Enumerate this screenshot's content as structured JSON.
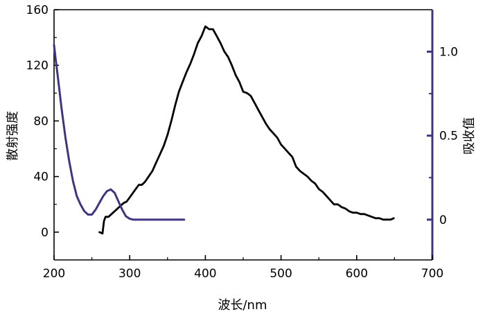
{
  "chart_data": {
    "type": "line",
    "xlabel": "波长/nm",
    "ylabel_left": "散射强度",
    "ylabel_right": "吸收值",
    "x_range": [
      200,
      700
    ],
    "x_ticks": [
      200,
      300,
      400,
      500,
      600,
      700
    ],
    "y_left_range": [
      -20,
      160
    ],
    "y_left_ticks": [
      0,
      40,
      80,
      120,
      160
    ],
    "y_right_range": [
      -0.24,
      1.25
    ],
    "y_right_ticks": [
      0,
      0.5,
      1.0
    ],
    "y_right_tick_labels": [
      "0",
      "0.5",
      "1.0"
    ],
    "grid": false,
    "colors": {
      "scatter_series": "#000000",
      "absorbance_series": "#3d3580",
      "right_axis": "#3d3580"
    },
    "series": [
      {
        "axis": "left",
        "x": [
          260,
          264,
          266,
          268,
          272,
          276,
          280,
          284,
          288,
          292,
          296,
          300,
          304,
          308,
          312,
          316,
          320,
          325,
          330,
          335,
          340,
          345,
          350,
          355,
          360,
          365,
          370,
          375,
          380,
          385,
          390,
          395,
          400,
          405,
          410,
          415,
          420,
          425,
          430,
          435,
          440,
          445,
          450,
          455,
          460,
          465,
          470,
          475,
          480,
          485,
          490,
          495,
          500,
          505,
          510,
          515,
          520,
          525,
          530,
          535,
          540,
          545,
          550,
          555,
          560,
          565,
          570,
          575,
          580,
          585,
          590,
          595,
          600,
          605,
          610,
          615,
          620,
          625,
          630,
          635,
          640,
          645,
          649
        ],
        "values": [
          0,
          -1,
          8,
          11,
          11,
          13,
          15,
          17,
          19,
          21,
          22,
          25,
          28,
          31,
          34,
          34,
          36,
          40,
          44,
          50,
          56,
          62,
          70,
          80,
          91,
          101,
          108,
          115,
          121,
          128,
          136,
          141,
          148,
          146,
          146,
          141,
          136,
          130,
          126,
          120,
          113,
          108,
          101,
          100,
          98,
          93,
          88,
          83,
          78,
          74,
          71,
          68,
          63,
          60,
          57,
          54,
          47,
          44,
          42,
          40,
          37,
          35,
          31,
          29,
          26,
          23,
          20,
          20,
          18,
          17,
          15,
          14,
          14,
          13,
          13,
          12,
          11,
          10,
          10,
          9,
          9,
          9,
          10
        ]
      },
      {
        "axis": "right",
        "x": [
          200,
          202,
          205,
          210,
          215,
          220,
          225,
          230,
          235,
          240,
          245,
          250,
          255,
          260,
          265,
          270,
          275,
          280,
          285,
          290,
          295,
          300,
          305,
          310,
          320,
          330,
          340,
          350,
          360,
          372
        ],
        "values": [
          1.04,
          0.96,
          0.85,
          0.66,
          0.49,
          0.35,
          0.23,
          0.14,
          0.09,
          0.05,
          0.03,
          0.03,
          0.06,
          0.1,
          0.14,
          0.17,
          0.18,
          0.16,
          0.11,
          0.06,
          0.02,
          0.005,
          0.0,
          0.0,
          0.0,
          0.0,
          0.0,
          0.0,
          0.0,
          0.0
        ]
      }
    ]
  }
}
